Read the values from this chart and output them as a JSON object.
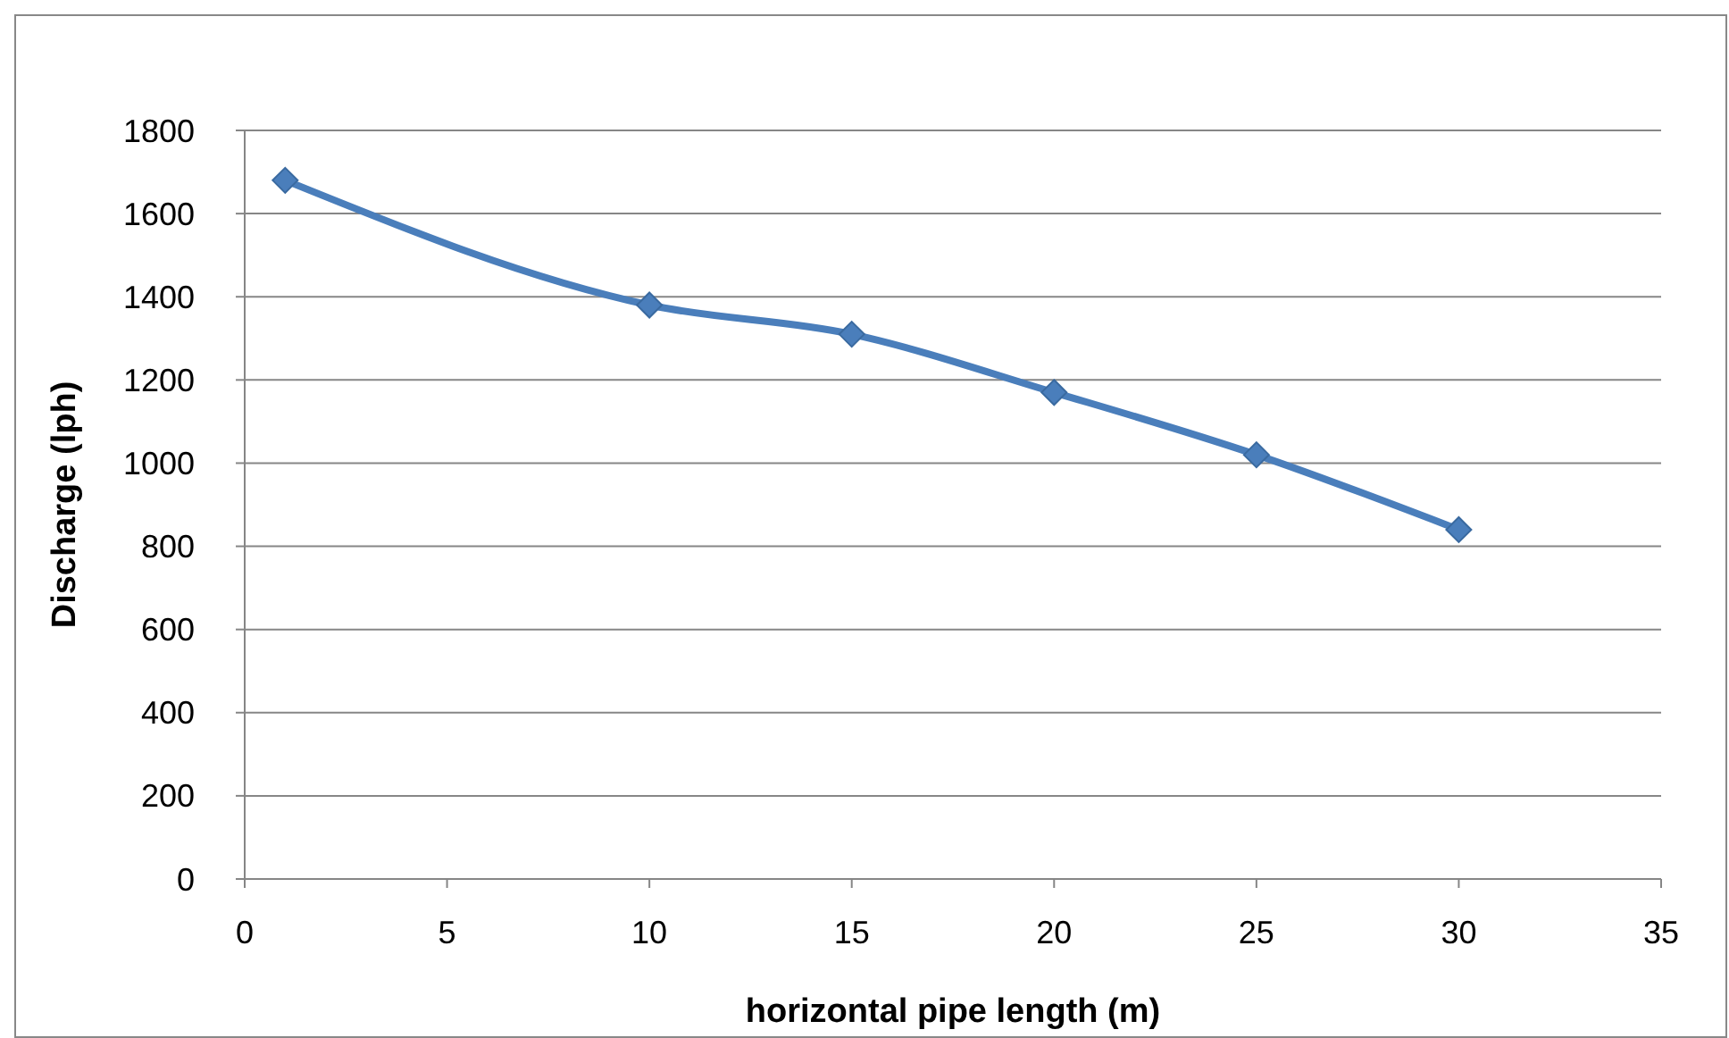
{
  "chart_data": {
    "type": "line",
    "xlabel": "horizontal pipe length (m)",
    "ylabel": "Discharge (lph)",
    "x": [
      1,
      10,
      15,
      20,
      25,
      30
    ],
    "series": [
      {
        "color": "#4a7ebb",
        "values": [
          1680,
          1380,
          1310,
          1170,
          1020,
          840
        ]
      }
    ],
    "xlim": [
      0,
      35
    ],
    "xticks": [
      0,
      5,
      10,
      15,
      20,
      25,
      30,
      35
    ],
    "ylim": [
      0,
      1800
    ],
    "yticks": [
      0,
      200,
      400,
      600,
      800,
      1000,
      1200,
      1400,
      1600,
      1800
    ],
    "grid": "y",
    "marker": "diamond",
    "line_style": "solid"
  }
}
